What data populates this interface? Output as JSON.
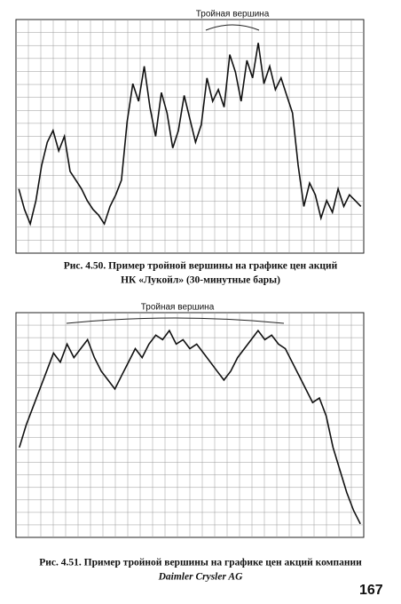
{
  "chart_data": [
    {
      "type": "line",
      "annotation": "Тройная вершина",
      "caption": [
        "Рис. 4.50. Пример тройной вершины на графике цен акций",
        "НК «Лукойл» (30-минутные бары)"
      ],
      "values": [
        42,
        35,
        30,
        38,
        50,
        58,
        62,
        55,
        60,
        48,
        45,
        42,
        38,
        35,
        33,
        30,
        36,
        40,
        45,
        65,
        78,
        72,
        84,
        70,
        60,
        75,
        68,
        56,
        62,
        74,
        66,
        58,
        64,
        80,
        72,
        76,
        70,
        88,
        82,
        72,
        86,
        80,
        92,
        78,
        84,
        76,
        80,
        74,
        68,
        50,
        36,
        44,
        40,
        32,
        38,
        34,
        42,
        36,
        40,
        38,
        36
      ],
      "ylim": [
        20,
        100
      ],
      "grid": true,
      "color": "#111111"
    },
    {
      "type": "line",
      "annotation": "Тройная вершина",
      "caption": [
        "Рис. 4.51. Пример тройной вершины на графике цен акций компании",
        "Daimler Crysler AG"
      ],
      "values": [
        40,
        50,
        58,
        66,
        74,
        82,
        78,
        86,
        80,
        84,
        88,
        80,
        74,
        70,
        66,
        72,
        78,
        84,
        80,
        86,
        90,
        88,
        92,
        86,
        88,
        84,
        86,
        82,
        78,
        74,
        70,
        74,
        80,
        84,
        88,
        92,
        88,
        90,
        86,
        84,
        78,
        72,
        66,
        60,
        62,
        54,
        40,
        30,
        20,
        12,
        6
      ],
      "ylim": [
        0,
        100
      ],
      "grid": true,
      "color": "#111111"
    }
  ],
  "page_number": "167"
}
